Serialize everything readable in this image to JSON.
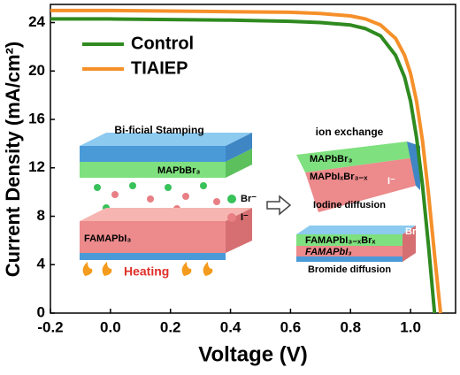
{
  "chart_data": {
    "type": "line",
    "x_label": "Voltage (V)",
    "y_label": "Current Density (mA/cm²)",
    "x": [
      -0.2,
      0,
      0.2,
      0.4,
      0.6,
      0.7,
      0.8,
      0.85,
      0.9,
      0.95,
      0.98,
      1.0,
      1.02,
      1.04,
      1.06,
      1.08,
      1.1
    ],
    "series": [
      {
        "name": "Control",
        "color": "#2f8a1f",
        "values": [
          24.3,
          24.3,
          24.25,
          24.2,
          24.1,
          24.0,
          23.8,
          23.5,
          22.9,
          21.3,
          19.5,
          17.5,
          14.5,
          10.5,
          5.5,
          0,
          null
        ]
      },
      {
        "name": "TIAIEP",
        "color": "#f5902a",
        "values": [
          25.0,
          25.0,
          24.95,
          24.9,
          24.85,
          24.75,
          24.55,
          24.3,
          23.8,
          22.7,
          21.3,
          19.8,
          17.5,
          14.2,
          9.8,
          4.8,
          0
        ]
      }
    ],
    "xlim": [
      -0.2,
      1.15
    ],
    "ylim": [
      0,
      25.5
    ],
    "xticks": [
      -0.2,
      {
        "value": 0,
        "label": "0.0"
      },
      0.2,
      0.4,
      0.6,
      0.8,
      {
        "value": 1,
        "label": "1.0"
      }
    ],
    "yticks": [
      0,
      4,
      8,
      12,
      16,
      20,
      24
    ],
    "legend": "upper-left",
    "annotations": [
      "Bi-ficial Stamping",
      "MAPbBr₃",
      "FAMAPbI₃",
      "Heating",
      "Br⁻",
      "I⁻",
      "ion exchange",
      "MAPbBr₃",
      "MAPbIₓBr₃₋ₓ",
      "Iodine diffusion",
      "FAMAPbI₃₋ₓBrₓ",
      "FAMAPbI₃",
      "Bromide diffusion",
      "I⁻",
      "Br⁻"
    ]
  }
}
